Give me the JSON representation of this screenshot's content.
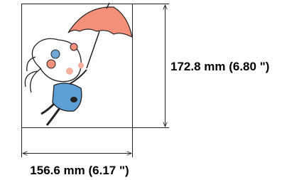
{
  "dimensions": {
    "height_label": "172.8 mm (6.80 \")",
    "width_label": "156.6 mm (6.17 \")"
  }
}
